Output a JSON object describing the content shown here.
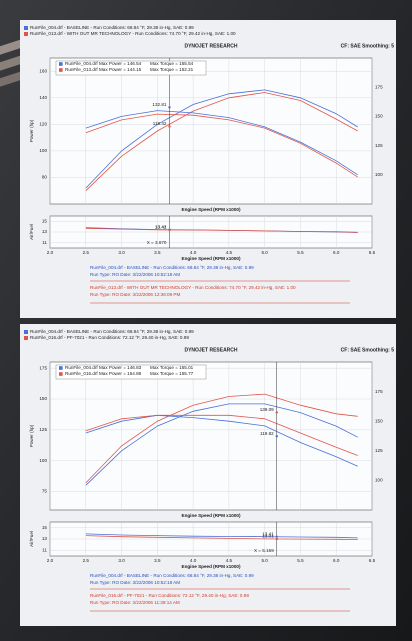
{
  "chart_data": [
    {
      "type": "line",
      "title": "DYNOJET RESEARCH",
      "cf_text": "CF: SAE  Smoothing: 5",
      "header": [
        "RunFile_004.drf - BASELINE - Run Conditions: 68.84 °F, 29.38 in-Hg, SAE: 0.99",
        "RunFile_013.drf - WITH OUT MR TECHNOLOGY - Run Conditions: 74.70 °F, 29.42 in-Hg, SAE: 1.00"
      ],
      "footer": [
        "RunFile_004.drf - BASELINE - Run Conditions: 68.84 °F, 29.38 in-Hg, SAE: 0.99",
        "Run Type: RO  Date: 3/22/2006 10:52:18 AM",
        "RunFile_013.drf - WITH OUT MR TECHNOLOGY - Run Conditions: 74.70 °F, 29.42 in-Hg, SAE: 1.00",
        "Run Type: RO  Date: 3/22/2006 12:36:09 PM"
      ],
      "y_label": "Power (hp)",
      "x_label": "Engine Speed (RPM x1000)",
      "x": [
        2.5,
        3.0,
        3.5,
        4.0,
        4.5,
        5.0,
        5.5,
        6.0,
        6.3
      ],
      "series": [
        {
          "name": "RunFile_004.drf Max Power = 146.54",
          "color": "#4a6fd8",
          "values": [
            72,
            100,
            120,
            135,
            143,
            146,
            140,
            128,
            118
          ]
        },
        {
          "name": "RunFile_013.drf Max Power = 144.15",
          "color": "#e0554a",
          "values": [
            70,
            96,
            115,
            130,
            140,
            144,
            138,
            124,
            115
          ]
        },
        {
          "name": "Max Torque = 155.54",
          "color": "#4a6fd8",
          "axis": "y2",
          "values": [
            140,
            150,
            155,
            153,
            149,
            141,
            128,
            112,
            100
          ]
        },
        {
          "name": "Max Torque = 152.21",
          "color": "#e0554a",
          "axis": "y2",
          "values": [
            136,
            147,
            152,
            151,
            147,
            140,
            127,
            110,
            98
          ]
        }
      ],
      "xlim": [
        2.0,
        6.5
      ],
      "xticks": [
        {
          "value": 2,
          "label": "2.0"
        },
        2.5,
        {
          "value": 3,
          "label": "3.0"
        },
        3.5,
        {
          "value": 4,
          "label": "4.0"
        },
        4.5,
        {
          "value": 5,
          "label": "5.0"
        },
        5.5,
        {
          "value": 6,
          "label": "6.0"
        },
        6.5
      ],
      "ylim": [
        60,
        170
      ],
      "yticks": [
        80,
        100,
        120,
        140,
        160
      ],
      "y2lim": [
        75,
        200
      ],
      "y2ticks": [
        100,
        125,
        150,
        175
      ],
      "grid": true,
      "cursor": 3.67,
      "annotations": [
        {
          "x": 3.67,
          "y": 132.81,
          "label": "132.81",
          "color": "#4a6fd8"
        },
        {
          "x": 3.67,
          "y": 118.42,
          "label": "118.42",
          "color": "#e0554a"
        }
      ]
    },
    {
      "type": "line",
      "y_label": "Air/Fuel",
      "x_label": "Engine Speed (RPM x1000)",
      "x": [
        2.5,
        3.0,
        3.5,
        4.0,
        4.5,
        5.0,
        5.5,
        6.0,
        6.3
      ],
      "series": [
        {
          "color": "#4a6fd8",
          "values": [
            13.8,
            13.6,
            13.45,
            13.4,
            13.3,
            13.2,
            13.1,
            13.0,
            12.9
          ]
        },
        {
          "color": "#e0554a",
          "values": [
            13.7,
            13.55,
            13.42,
            13.38,
            13.3,
            13.2,
            13.1,
            13.05,
            12.95
          ]
        }
      ],
      "xlim": [
        2.0,
        6.5
      ],
      "xticks": [
        {
          "value": 2,
          "label": "2.0"
        },
        2.5,
        {
          "value": 3,
          "label": "3.0"
        },
        3.5,
        {
          "value": 4,
          "label": "4.0"
        },
        4.5,
        {
          "value": 5,
          "label": "5.0"
        },
        5.5,
        {
          "value": 6,
          "label": "6.0"
        },
        6.5
      ],
      "ylim": [
        10,
        16
      ],
      "yticks": [
        11,
        13,
        15
      ],
      "grid": true,
      "cursor": {
        "value": 3.67,
        "label": "X = 3.670"
      },
      "annotations": [
        {
          "x": 3.67,
          "y": 13.42,
          "label": "13.42",
          "color": "#4a6fd8"
        },
        {
          "x": 3.67,
          "y": 13.41,
          "label": "13.41",
          "color": "#e0554a"
        }
      ]
    },
    {
      "type": "line",
      "title": "DYNOJET RESEARCH",
      "cf_text": "CF: SAE  Smoothing: 5",
      "header": [
        "RunFile_004.drf - BASELINE - Run Conditions: 68.84 °F, 29.38 in-Hg, SAE: 0.99",
        "RunFile_016.drf - PF-7021 - Run Conditions: 72.12 °F, 29.40 in-Hg, SAE: 0.99"
      ],
      "footer": [
        "RunFile_004.drf - BASELINE - Run Conditions: 68.84 °F, 29.38 in-Hg, SAE: 0.99",
        "Run Type: RO  Date: 3/22/2006 10:52:18 AM",
        "RunFile_016.drf - PF-7021 - Run Conditions: 72.12 °F, 29.40 in-Hg, SAE: 0.99",
        "Run Type: RO  Date: 3/22/2006 11:39:14 AM"
      ],
      "y_label": "Power (hp)",
      "x_label": "Engine Speed (RPM x1000)",
      "x": [
        2.5,
        3.0,
        3.5,
        4.0,
        4.5,
        5.0,
        5.5,
        6.0,
        6.3
      ],
      "series": [
        {
          "name": "RunFile_004.drf Max Power = 146.83",
          "color": "#4a6fd8",
          "values": [
            80,
            108,
            128,
            140,
            146,
            146,
            139,
            128,
            119
          ]
        },
        {
          "name": "RunFile_016.drf Max Power = 154.88",
          "color": "#e0554a",
          "values": [
            82,
            112,
            132,
            145,
            152,
            154,
            145,
            138,
            136
          ]
        },
        {
          "name": "Max Torque = 155.01",
          "color": "#4a6fd8",
          "axis": "y2",
          "values": [
            140,
            150,
            155,
            153,
            150,
            146,
            132,
            120,
            112
          ]
        },
        {
          "name": "Max Torque = 155.77",
          "color": "#e0554a",
          "axis": "y2",
          "values": [
            142,
            152,
            155,
            155,
            155,
            152,
            140,
            128,
            121
          ]
        }
      ],
      "xlim": [
        2.0,
        6.5
      ],
      "xticks": [
        {
          "value": 2,
          "label": "2.0"
        },
        2.5,
        {
          "value": 3,
          "label": "3.0"
        },
        3.5,
        {
          "value": 4,
          "label": "4.0"
        },
        4.5,
        {
          "value": 5,
          "label": "5.0"
        },
        5.5,
        {
          "value": 6,
          "label": "6.0"
        },
        6.5
      ],
      "ylim": [
        60,
        180
      ],
      "yticks": [
        75,
        100,
        125,
        150,
        175
      ],
      "y2lim": [
        75,
        200
      ],
      "y2ticks": [
        100,
        125,
        150,
        175
      ],
      "grid": true,
      "cursor": 5.169,
      "annotations": [
        {
          "x": 5.169,
          "y": 139.09,
          "label": "139.09",
          "color": "#e0554a"
        },
        {
          "x": 5.169,
          "y": 119.82,
          "label": "119.82",
          "color": "#4a6fd8"
        }
      ]
    },
    {
      "type": "line",
      "y_label": "Air/Fuel",
      "x_label": "Engine Speed (RPM x1000)",
      "x": [
        2.5,
        3.0,
        3.5,
        4.0,
        4.5,
        5.0,
        5.5,
        6.0,
        6.3
      ],
      "series": [
        {
          "color": "#4a6fd8",
          "values": [
            13.9,
            13.7,
            13.6,
            13.5,
            13.45,
            13.42,
            13.35,
            13.3,
            13.2
          ]
        },
        {
          "color": "#e0554a",
          "values": [
            13.6,
            13.4,
            13.3,
            13.2,
            13.1,
            13.02,
            12.98,
            12.95,
            12.9
          ]
        }
      ],
      "xlim": [
        2.0,
        6.5
      ],
      "xticks": [
        {
          "value": 2,
          "label": "2.0"
        },
        2.5,
        {
          "value": 3,
          "label": "3.0"
        },
        3.5,
        {
          "value": 4,
          "label": "4.0"
        },
        4.5,
        {
          "value": 5,
          "label": "5.0"
        },
        5.5,
        {
          "value": 6,
          "label": "6.0"
        },
        6.5
      ],
      "ylim": [
        10,
        16
      ],
      "yticks": [
        11,
        13,
        15
      ],
      "grid": true,
      "cursor": {
        "value": 5.169,
        "label": "X = 5.169"
      },
      "annotations": [
        {
          "x": 5.169,
          "y": 13.41,
          "label": "13.41",
          "color": "#4a6fd8"
        },
        {
          "x": 5.169,
          "y": 13.01,
          "label": "13.01",
          "color": "#e0554a"
        }
      ]
    }
  ]
}
